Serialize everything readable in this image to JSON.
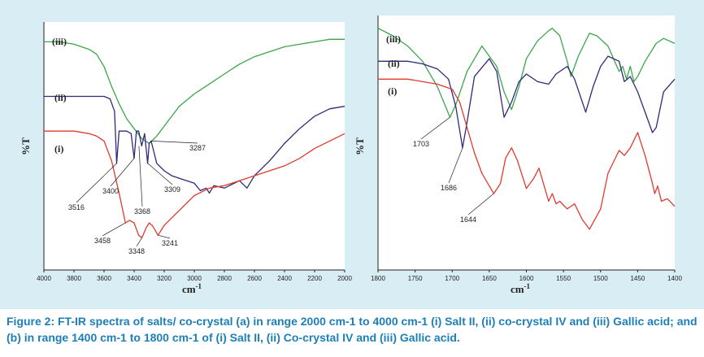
{
  "caption": "Figure 2: FT-IR spectra of salts/ co-crystal (a) in range 2000 cm-1 to 4000 cm-1 (i) Salt II, (ii) co-crystal IV and (iii) Gallic acid; and (b) in range 1400 cm-1 to 1800 cm-1 of (i) Salt II, (ii) Co-crystal IV and (iii) Gallic acid.",
  "colors": {
    "i": "#e03a2f",
    "ii": "#2e2a7a",
    "iii": "#3aa64a",
    "background": "#d9edf4",
    "caption": "#1d7fb8"
  },
  "chart_data": [
    {
      "type": "line",
      "xlabel": "cm",
      "xlabel_sup": "-1",
      "ylabel": "%T",
      "xlim": [
        4000,
        2000
      ],
      "ylim": [
        0,
        100
      ],
      "x_ticks": [
        4000,
        3800,
        3600,
        3400,
        3200,
        3000,
        2800,
        2600,
        2400,
        2200,
        2000
      ],
      "series": [
        {
          "name": "(iii)",
          "color": "#3aa64a",
          "x": [
            4000,
            3900,
            3800,
            3700,
            3650,
            3600,
            3550,
            3500,
            3450,
            3400,
            3350,
            3300,
            3250,
            3200,
            3150,
            3100,
            3000,
            2900,
            2800,
            2700,
            2600,
            2500,
            2400,
            2300,
            2200,
            2100,
            2000
          ],
          "y": [
            92,
            92,
            91,
            89,
            87,
            82,
            74,
            67,
            61,
            57,
            53,
            51,
            54,
            58,
            62,
            66,
            71,
            75,
            79,
            83,
            86,
            88,
            90,
            91,
            92,
            93,
            93
          ]
        },
        {
          "name": "(ii)",
          "color": "#2e2a7a",
          "x": [
            4000,
            3900,
            3800,
            3700,
            3600,
            3560,
            3530,
            3516,
            3500,
            3480,
            3450,
            3420,
            3400,
            3385,
            3370,
            3350,
            3330,
            3310,
            3300,
            3287,
            3270,
            3250,
            3200,
            3150,
            3100,
            3000,
            2960,
            2920,
            2900,
            2870,
            2800,
            2700,
            2650,
            2600,
            2500,
            2400,
            2300,
            2200,
            2100,
            2000
          ],
          "y": [
            70,
            70,
            70,
            70,
            70,
            69,
            64,
            43,
            56,
            56,
            56,
            55,
            45,
            56,
            56,
            50,
            55,
            43,
            51,
            52,
            48,
            43,
            40,
            38,
            37,
            35,
            32,
            33,
            31,
            34,
            33,
            36,
            33,
            38,
            44,
            51,
            57,
            62,
            65,
            66
          ]
        },
        {
          "name": "(i)",
          "color": "#e03a2f",
          "x": [
            4000,
            3900,
            3800,
            3700,
            3650,
            3600,
            3550,
            3500,
            3458,
            3430,
            3400,
            3370,
            3348,
            3320,
            3300,
            3280,
            3260,
            3241,
            3200,
            3100,
            3000,
            2900,
            2800,
            2700,
            2600,
            2500,
            2400,
            2300,
            2200,
            2100,
            2000
          ],
          "y": [
            56,
            56,
            56,
            55,
            54,
            52,
            44,
            31,
            19,
            20,
            19,
            14,
            13,
            17,
            19,
            18,
            16,
            14,
            18,
            24,
            30,
            33,
            34,
            36,
            38,
            40,
            42,
            45,
            49,
            52,
            55
          ]
        }
      ],
      "annotations": [
        {
          "label": "3516",
          "x": 3516
        },
        {
          "label": "3400",
          "x": 3400
        },
        {
          "label": "3368",
          "x": 3368
        },
        {
          "label": "3309",
          "x": 3309
        },
        {
          "label": "3287",
          "x": 3287
        },
        {
          "label": "3458",
          "x": 3458
        },
        {
          "label": "3348",
          "x": 3348
        },
        {
          "label": "3241",
          "x": 3241
        }
      ],
      "series_labels": [
        "(iii)",
        "(ii)",
        "(i)"
      ]
    },
    {
      "type": "line",
      "xlabel": "cm",
      "xlabel_sup": "-1",
      "ylabel": "%T",
      "xlim": [
        1800,
        1400
      ],
      "ylim": [
        0,
        100
      ],
      "x_ticks": [
        1800,
        1750,
        1700,
        1650,
        1600,
        1550,
        1500,
        1450,
        1400
      ],
      "series": [
        {
          "name": "(iii)",
          "color": "#3aa64a",
          "x": [
            1800,
            1780,
            1760,
            1740,
            1720,
            1710,
            1703,
            1695,
            1680,
            1660,
            1640,
            1630,
            1620,
            1610,
            1600,
            1585,
            1570,
            1565,
            1555,
            1545,
            1540,
            1530,
            1515,
            1505,
            1490,
            1475,
            1470,
            1465,
            1460,
            1455,
            1450,
            1440,
            1425,
            1415,
            1400
          ],
          "y": [
            95,
            92,
            88,
            82,
            72,
            65,
            60,
            65,
            78,
            88,
            80,
            70,
            63,
            72,
            83,
            90,
            94,
            95,
            92,
            82,
            76,
            84,
            93,
            92,
            88,
            78,
            80,
            75,
            80,
            74,
            76,
            82,
            89,
            91,
            89
          ]
        },
        {
          "name": "(ii)",
          "color": "#2e2a7a",
          "x": [
            1800,
            1780,
            1760,
            1740,
            1720,
            1705,
            1695,
            1686,
            1680,
            1670,
            1650,
            1640,
            1630,
            1620,
            1610,
            1600,
            1585,
            1570,
            1560,
            1545,
            1535,
            1520,
            1510,
            1500,
            1490,
            1475,
            1468,
            1460,
            1450,
            1440,
            1430,
            1425,
            1415,
            1400
          ],
          "y": [
            82,
            82,
            82,
            81,
            79,
            75,
            64,
            48,
            58,
            76,
            83,
            78,
            60,
            66,
            74,
            77,
            74,
            73,
            77,
            80,
            75,
            62,
            72,
            80,
            84,
            82,
            74,
            76,
            70,
            62,
            54,
            56,
            70,
            75
          ]
        },
        {
          "name": "(i)",
          "color": "#e03a2f",
          "x": [
            1800,
            1780,
            1760,
            1740,
            1720,
            1700,
            1690,
            1680,
            1670,
            1660,
            1650,
            1644,
            1635,
            1628,
            1620,
            1612,
            1600,
            1590,
            1583,
            1570,
            1565,
            1560,
            1555,
            1545,
            1535,
            1525,
            1515,
            1500,
            1490,
            1475,
            1468,
            1460,
            1450,
            1440,
            1430,
            1427,
            1423,
            1418,
            1410,
            1400
          ],
          "y": [
            75,
            75,
            75,
            74,
            73,
            71,
            66,
            56,
            46,
            38,
            33,
            30,
            34,
            44,
            48,
            43,
            32,
            36,
            40,
            27,
            30,
            26,
            27,
            24,
            26,
            20,
            16,
            24,
            38,
            47,
            45,
            48,
            54,
            45,
            34,
            30,
            33,
            27,
            28,
            25
          ]
        }
      ],
      "annotations": [
        {
          "label": "1703",
          "x": 1703
        },
        {
          "label": "1686",
          "x": 1686
        },
        {
          "label": "1644",
          "x": 1644
        }
      ],
      "series_labels": [
        "(iii)",
        "(ii)",
        "(i)"
      ]
    }
  ]
}
